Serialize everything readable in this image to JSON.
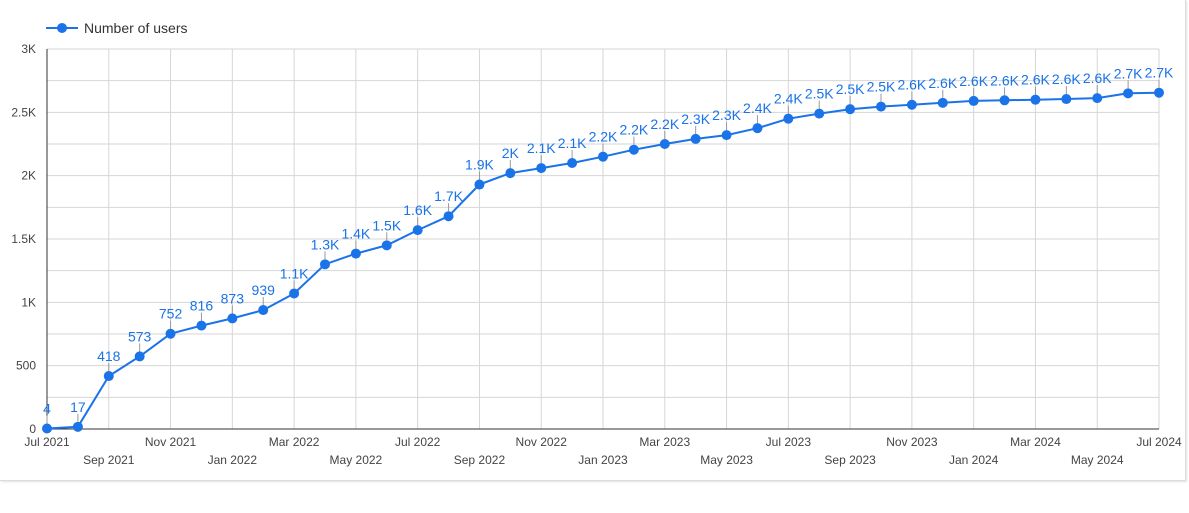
{
  "colors": {
    "series": "#1a73e8",
    "grid": "#d6d6d6",
    "axis": "#333333",
    "text": "#444444"
  },
  "chart_data": {
    "type": "line",
    "legend_position": "top-left",
    "grid": true,
    "x_ticks_row1": [
      "Jul 2021",
      "Nov 2021",
      "Mar 2022",
      "Jul 2022",
      "Nov 2022",
      "Mar 2023",
      "Jul 2023",
      "Nov 2023",
      "Mar 2024",
      "Jul 2024"
    ],
    "x_ticks_row2": [
      "Sep 2021",
      "Jan 2022",
      "May 2022",
      "Sep 2022",
      "Jan 2023",
      "May 2023",
      "Sep 2023",
      "Jan 2024",
      "May 2024"
    ],
    "y_ticks": [
      "0",
      "500",
      "1K",
      "1.5K",
      "2K",
      "2.5K",
      "3K"
    ],
    "ylim": [
      0,
      3000
    ],
    "series": [
      {
        "name": "Number of users",
        "x": [
          "2021-07",
          "2021-08",
          "2021-09",
          "2021-10",
          "2021-11",
          "2021-12",
          "2022-01",
          "2022-02",
          "2022-03",
          "2022-04",
          "2022-05",
          "2022-06",
          "2022-07",
          "2022-08",
          "2022-09",
          "2022-10",
          "2022-11",
          "2022-12",
          "2023-01",
          "2023-02",
          "2023-03",
          "2023-04",
          "2023-05",
          "2023-06",
          "2023-07",
          "2023-08",
          "2023-09",
          "2023-10",
          "2023-11",
          "2023-12",
          "2024-01",
          "2024-02",
          "2024-03",
          "2024-04",
          "2024-05",
          "2024-06",
          "2024-07"
        ],
        "values": [
          4,
          17,
          418,
          573,
          752,
          816,
          873,
          939,
          1070,
          1300,
          1385,
          1450,
          1570,
          1680,
          1930,
          2020,
          2060,
          2100,
          2150,
          2205,
          2250,
          2290,
          2320,
          2375,
          2450,
          2490,
          2525,
          2545,
          2560,
          2575,
          2590,
          2595,
          2600,
          2605,
          2612,
          2650,
          2655
        ],
        "labels": [
          "4",
          "17",
          "418",
          "573",
          "752",
          "816",
          "873",
          "939",
          "1.1K",
          "1.3K",
          "1.4K",
          "1.5K",
          "1.6K",
          "1.7K",
          "1.9K",
          "2K",
          "2.1K",
          "2.1K",
          "2.2K",
          "2.2K",
          "2.2K",
          "2.3K",
          "2.3K",
          "2.4K",
          "2.4K",
          "2.5K",
          "2.5K",
          "2.5K",
          "2.6K",
          "2.6K",
          "2.6K",
          "2.6K",
          "2.6K",
          "2.6K",
          "2.6K",
          "2.7K",
          "2.7K"
        ]
      }
    ]
  }
}
